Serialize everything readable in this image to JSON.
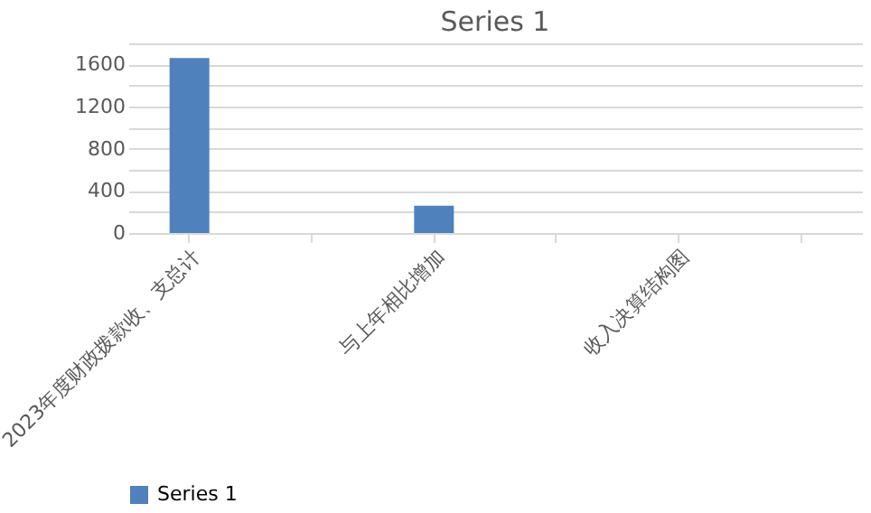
{
  "chart_data": {
    "type": "bar",
    "title": "Series 1",
    "categories": [
      "2023年度财政拨款收、支总计",
      null,
      "与上年相比增加",
      null,
      "收入决算结构图",
      null
    ],
    "series": [
      {
        "name": "Series 1",
        "color": "#4f81bd",
        "values": [
          1660,
          null,
          260,
          null,
          null,
          null
        ]
      }
    ],
    "ylim": [
      0,
      1800
    ],
    "yticks": [
      0,
      {
        "value": 200,
        "label": null
      },
      400,
      {
        "value": 600,
        "label": null
      },
      800,
      {
        "value": 1000,
        "label": null
      },
      1200,
      {
        "value": 1400,
        "label": null
      },
      1600,
      {
        "value": 1800,
        "label": null
      }
    ],
    "grid": "y",
    "legend": "bottom"
  }
}
